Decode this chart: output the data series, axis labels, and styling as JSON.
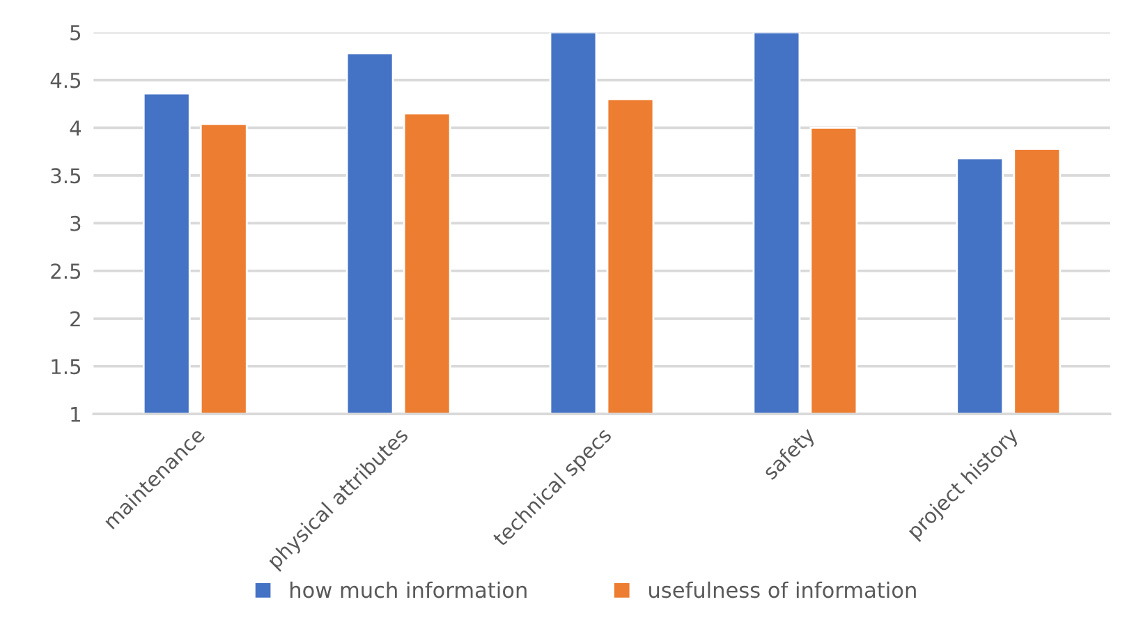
{
  "chart_data": {
    "type": "bar",
    "categories": [
      "maintenance",
      "physical attributes",
      "technical specs",
      "safety",
      "project history"
    ],
    "series": [
      {
        "name": "how much information",
        "color": "#4472c4",
        "values": [
          4.36,
          4.78,
          5,
          5,
          3.68
        ]
      },
      {
        "name": "usefulness of information",
        "color": "#ed7d31",
        "values": [
          4.04,
          4.15,
          4.3,
          4.0,
          3.78
        ]
      }
    ],
    "ylim": [
      1,
      5
    ],
    "yticks": [
      1,
      1.5,
      2,
      2.5,
      3,
      3.5,
      4,
      4.5,
      5
    ],
    "grid": "y",
    "legend": "bottom"
  }
}
